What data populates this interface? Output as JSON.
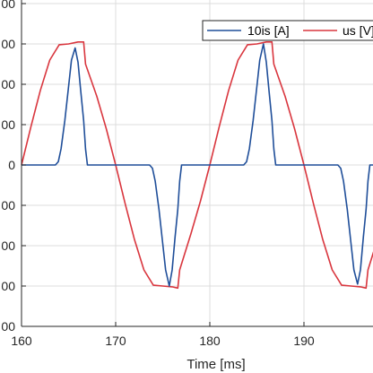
{
  "chart_data": {
    "type": "line",
    "title": "",
    "xlabel": "Time [ms]",
    "ylabel": "",
    "xlim": [
      160,
      199
    ],
    "ylim": [
      -400,
      400
    ],
    "x_ticks": [
      160,
      170,
      180,
      190
    ],
    "x_tick_labels": [
      "160",
      "170",
      "180",
      "190"
    ],
    "y_tick_labels": [
      "00",
      "00",
      "00",
      "00",
      "0",
      "00",
      "00",
      "00",
      "00"
    ],
    "grid": true,
    "legend_position": "top-right",
    "series": [
      {
        "name": "10is [A]",
        "color": "#1f4e99",
        "x": [
          160,
          163.6,
          163.9,
          164.2,
          164.6,
          165.0,
          165.3,
          165.7,
          166.0,
          166.3,
          166.6,
          166.8,
          167.0,
          173.6,
          173.9,
          174.2,
          174.6,
          175.0,
          175.3,
          175.7,
          176.0,
          176.3,
          176.6,
          176.8,
          177.0,
          183.6,
          183.9,
          184.2,
          184.6,
          185.0,
          185.3,
          185.7,
          186.0,
          186.3,
          186.6,
          186.8,
          187.0,
          193.6,
          193.9,
          194.2,
          194.6,
          195.0,
          195.3,
          195.7,
          196.0,
          196.3,
          196.6,
          196.8,
          197.0,
          199
        ],
        "y": [
          0,
          0,
          8,
          40,
          110,
          195,
          260,
          290,
          255,
          180,
          110,
          40,
          0,
          0,
          -8,
          -40,
          -110,
          -195,
          -260,
          -300,
          -260,
          -180,
          -110,
          -40,
          0,
          0,
          8,
          40,
          110,
          195,
          260,
          300,
          255,
          180,
          110,
          40,
          0,
          0,
          -8,
          -40,
          -110,
          -195,
          -260,
          -295,
          -260,
          -180,
          -110,
          -40,
          0,
          0
        ]
      },
      {
        "name": "us [V]",
        "color": "#d9363e",
        "x": [
          160,
          161,
          162,
          163,
          164,
          165,
          166,
          166.6,
          166.8,
          168,
          169,
          170,
          171,
          172,
          173,
          174,
          175,
          176,
          176.6,
          176.8,
          178,
          179,
          180,
          181,
          182,
          183,
          184,
          185,
          186,
          186.6,
          186.8,
          188,
          189,
          190,
          191,
          192,
          193,
          194,
          195,
          196,
          196.6,
          196.8,
          198,
          199
        ],
        "y": [
          0,
          95,
          185,
          260,
          298,
          300,
          305,
          305,
          250,
          170,
          90,
          0,
          -95,
          -185,
          -260,
          -298,
          -300,
          -302,
          -305,
          -260,
          -170,
          -90,
          0,
          95,
          185,
          260,
          298,
          300,
          305,
          305,
          250,
          170,
          90,
          0,
          -95,
          -185,
          -260,
          -298,
          -300,
          -302,
          -305,
          -260,
          -170,
          -90
        ]
      }
    ]
  }
}
